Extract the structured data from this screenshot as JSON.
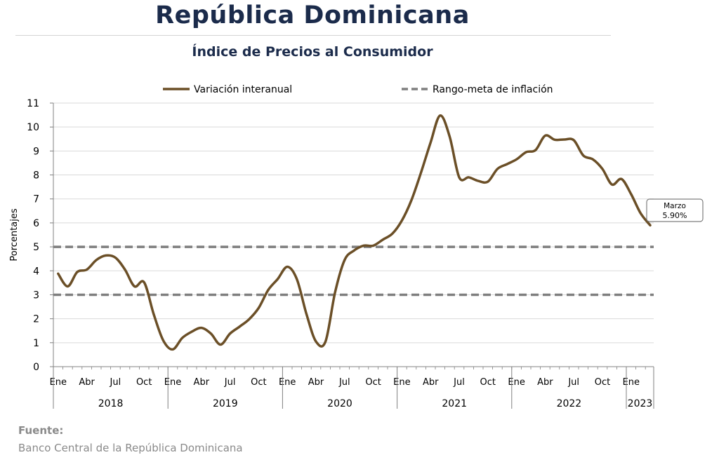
{
  "header": {
    "title": "República Dominicana",
    "subtitle": "Índice de Precios al Consumidor"
  },
  "source": {
    "label": "Fuente:",
    "text": "Banco Central de la República Dominicana"
  },
  "colors": {
    "series": "#6b4f27",
    "target": "#7f7f7f",
    "grid": "#d9d9d9",
    "axis_text": "#000000"
  },
  "chart_data": {
    "type": "line",
    "title": "Índice de Precios al Consumidor",
    "ylabel": "Porcentajes",
    "xlabel": "",
    "ylim": [
      0,
      11
    ],
    "yticks": [
      0,
      1,
      2,
      3,
      4,
      5,
      6,
      7,
      8,
      9,
      10,
      11
    ],
    "grid": true,
    "legend_position": "top",
    "month_labels": [
      "Ene",
      "Abr",
      "Jul",
      "Oct",
      "Ene",
      "Abr",
      "Jul",
      "Oct",
      "Ene",
      "Abr",
      "Jul",
      "Oct",
      "Ene",
      "Abr",
      "Jul",
      "Oct",
      "Ene",
      "Abr",
      "Jul",
      "Oct",
      "Ene"
    ],
    "year_labels": [
      "2018",
      "2019",
      "2020",
      "2021",
      "2022",
      "2023"
    ],
    "x": [
      "2018-01",
      "2018-02",
      "2018-03",
      "2018-04",
      "2018-05",
      "2018-06",
      "2018-07",
      "2018-08",
      "2018-09",
      "2018-10",
      "2018-11",
      "2018-12",
      "2019-01",
      "2019-02",
      "2019-03",
      "2019-04",
      "2019-05",
      "2019-06",
      "2019-07",
      "2019-08",
      "2019-09",
      "2019-10",
      "2019-11",
      "2019-12",
      "2020-01",
      "2020-02",
      "2020-03",
      "2020-04",
      "2020-05",
      "2020-06",
      "2020-07",
      "2020-08",
      "2020-09",
      "2020-10",
      "2020-11",
      "2020-12",
      "2021-01",
      "2021-02",
      "2021-03",
      "2021-04",
      "2021-05",
      "2021-06",
      "2021-07",
      "2021-08",
      "2021-09",
      "2021-10",
      "2021-11",
      "2021-12",
      "2022-01",
      "2022-02",
      "2022-03",
      "2022-04",
      "2022-05",
      "2022-06",
      "2022-07",
      "2022-08",
      "2022-09",
      "2022-10",
      "2022-11",
      "2022-12",
      "2023-01",
      "2023-02",
      "2023-03"
    ],
    "series": [
      {
        "name": "Variación interanual",
        "style": "solid",
        "values": [
          3.88,
          3.35,
          3.95,
          4.05,
          4.45,
          4.64,
          4.55,
          4.05,
          3.35,
          3.52,
          2.2,
          1.1,
          0.72,
          1.2,
          1.46,
          1.62,
          1.38,
          0.92,
          1.38,
          1.67,
          1.98,
          2.45,
          3.2,
          3.66,
          4.17,
          3.65,
          2.2,
          1.05,
          1.05,
          3.1,
          4.45,
          4.85,
          5.05,
          5.05,
          5.3,
          5.55,
          6.1,
          6.95,
          8.1,
          9.35,
          10.48,
          9.6,
          7.9,
          7.9,
          7.75,
          7.72,
          8.25,
          8.45,
          8.65,
          8.95,
          9.04,
          9.64,
          9.47,
          9.48,
          9.45,
          8.81,
          8.65,
          8.25,
          7.6,
          7.83,
          7.2,
          6.4,
          5.9
        ]
      },
      {
        "name": "Rango-meta de inflación",
        "style": "dashed",
        "upper": 5,
        "lower": 3
      }
    ],
    "annotation": {
      "label": "Marzo",
      "value": "5.90%"
    }
  }
}
